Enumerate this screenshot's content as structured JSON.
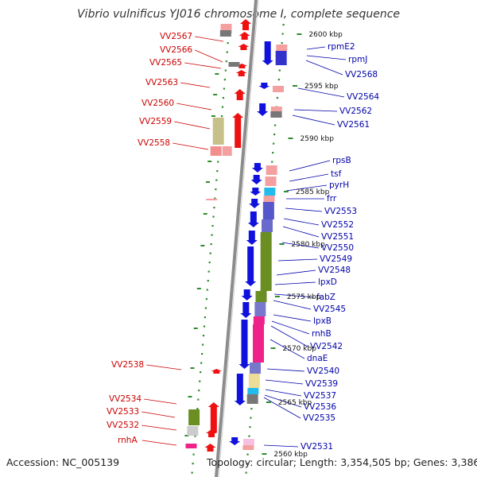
{
  "title": "Vibrio vulnificus YJ016 chromosome I, complete sequence",
  "footer": {
    "accession": "Accession: NC_005139",
    "topology": "Topology: circular; Length: 3,354,505 bp; Genes: 3,386"
  },
  "colors": {
    "backbone": "#8c8c8c",
    "ticks": "#2e8b2e",
    "forward_label": "#cc0000",
    "reverse_label": "#0000aa",
    "forward_gene": "#ee1111",
    "reverse_gene": "#1111dd"
  },
  "scale_ticks": [
    "2600 kbp",
    "2595 kbp",
    "2590 kbp",
    "2585 kbp",
    "2580 kbp",
    "2575 kbp",
    "2570 kbp",
    "2565 kbp",
    "2560 kbp"
  ],
  "left_labels": [
    "VV2567",
    "VV2566",
    "VV2565",
    "VV2563",
    "VV2560",
    "VV2559",
    "VV2558",
    "VV2538",
    "VV2534",
    "VV2533",
    "VV2532",
    "rnhA"
  ],
  "right_labels": [
    "rpmE2",
    "rpmJ",
    "VV2568",
    "VV2564",
    "VV2562",
    "VV2561",
    "rpsB",
    "tsf",
    "pyrH",
    "frr",
    "VV2553",
    "VV2552",
    "VV2551",
    "VV2550",
    "VV2549",
    "VV2548",
    "lpxD",
    "fabZ",
    "VV2545",
    "lpxB",
    "rnhB",
    "VV2542",
    "dnaE",
    "VV2540",
    "VV2539",
    "VV2537",
    "VV2536",
    "VV2535",
    "VV2531"
  ]
}
